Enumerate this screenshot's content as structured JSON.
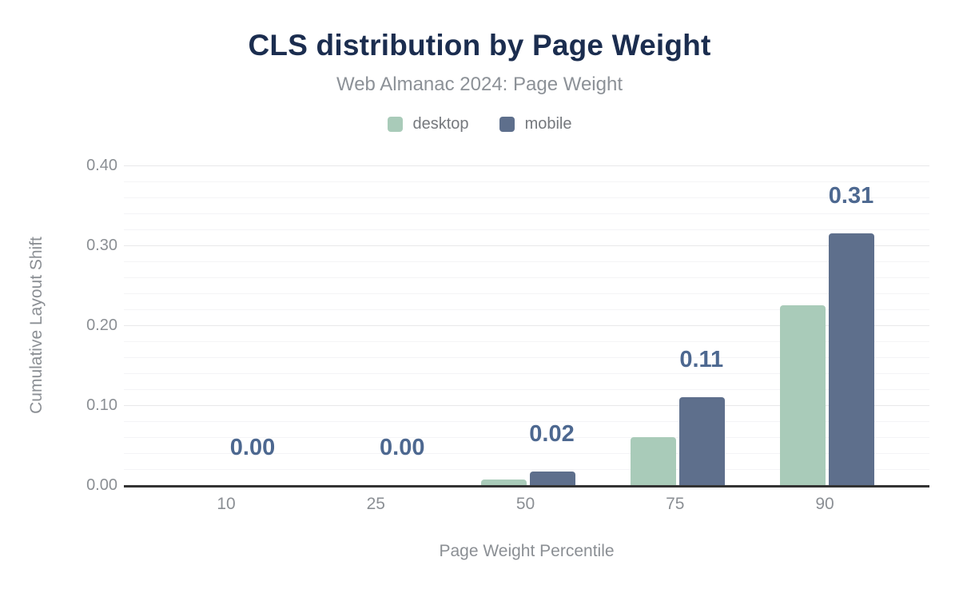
{
  "header": {
    "title": "CLS distribution by Page Weight",
    "subtitle": "Web Almanac 2024: Page Weight"
  },
  "chart_data": {
    "type": "bar",
    "title": "CLS distribution by Page Weight",
    "subtitle": "Web Almanac 2024: Page Weight",
    "categories": [
      "10",
      "25",
      "50",
      "75",
      "90"
    ],
    "series": [
      {
        "name": "desktop",
        "color": "#a9cbb9",
        "values": [
          0.0,
          0.0,
          0.007,
          0.06,
          0.225
        ]
      },
      {
        "name": "mobile",
        "color": "#5e6f8c",
        "values": [
          0.0,
          0.0,
          0.017,
          0.11,
          0.315
        ]
      }
    ],
    "data_labels": {
      "labeled_series": "mobile",
      "values": [
        "0.00",
        "0.00",
        "0.02",
        "0.11",
        "0.31"
      ]
    },
    "xlabel": "Page Weight Percentile",
    "ylabel": "Cumulative Layout Shift",
    "ylim": [
      0,
      0.4
    ],
    "yticks": [
      "0.00",
      "0.10",
      "0.20",
      "0.30",
      "0.40"
    ],
    "grid": {
      "on": true,
      "major_step": 0.1,
      "minor_step": 0.02
    },
    "legend_position": "top",
    "colors": {
      "title": "#1b2d4f",
      "subtitle": "#8c9197",
      "axis_text": "#8b8f94",
      "data_label": "#4d6890",
      "axis_line": "#333333",
      "grid_major": "#e8e8ea",
      "grid_minor": "#f4f4f6"
    }
  }
}
